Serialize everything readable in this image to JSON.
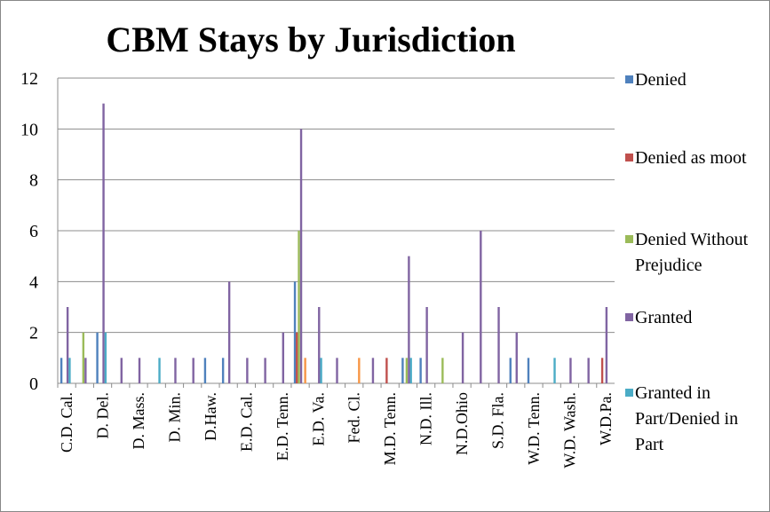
{
  "chart_data": {
    "type": "bar",
    "title": "CBM Stays by Jurisdiction",
    "categories": [
      "C.D. Cal.",
      null,
      "D. Del.",
      null,
      "D. Mass.",
      null,
      "D. Min.",
      null,
      "D.Haw.",
      null,
      "E.D. Cal.",
      null,
      "E.D. Tenn.",
      null,
      "E.D. Va.",
      null,
      "Fed. Cl.",
      null,
      "M.D. Tenn.",
      null,
      "N.D. Ill.",
      null,
      "N.D.Ohio",
      null,
      "S.D. Fla.",
      null,
      "W.D. Tenn.",
      null,
      "W.D. Wash.",
      null,
      "W.D.Pa."
    ],
    "series": [
      {
        "name": "Denied",
        "color": "#4f81bd",
        "values": [
          1,
          0,
          2,
          0,
          0,
          0,
          0,
          0,
          1,
          1,
          0,
          0,
          0,
          4,
          0,
          0,
          0,
          0,
          0,
          1,
          1,
          0,
          0,
          0,
          0,
          1,
          1,
          0,
          0,
          0,
          0
        ]
      },
      {
        "name": "Denied as moot",
        "color": "#c0504d",
        "values": [
          0,
          0,
          0,
          0,
          0,
          0,
          0,
          0,
          0,
          0,
          0,
          0,
          0,
          2,
          0,
          0,
          0,
          0,
          1,
          0,
          0,
          0,
          0,
          0,
          0,
          0,
          0,
          0,
          0,
          0,
          1
        ]
      },
      {
        "name": "Denied Without Prejudice",
        "color": "#9bbb59",
        "values": [
          0,
          2,
          0,
          0,
          0,
          0,
          0,
          0,
          0,
          0,
          0,
          0,
          0,
          6,
          0,
          0,
          0,
          0,
          0,
          1,
          0,
          1,
          0,
          0,
          0,
          0,
          0,
          0,
          0,
          0,
          0
        ]
      },
      {
        "name": "Granted",
        "color": "#8064a2",
        "values": [
          3,
          1,
          11,
          1,
          1,
          0,
          1,
          1,
          0,
          4,
          1,
          1,
          2,
          10,
          3,
          1,
          0,
          1,
          0,
          5,
          3,
          0,
          2,
          6,
          3,
          2,
          0,
          0,
          1,
          1,
          3
        ]
      },
      {
        "name": "Granted in Part/Denied in Part",
        "color": "#4bacc6",
        "values": [
          1,
          0,
          2,
          0,
          0,
          1,
          0,
          0,
          0,
          0,
          0,
          0,
          0,
          0,
          1,
          0,
          0,
          0,
          0,
          1,
          0,
          0,
          0,
          0,
          0,
          0,
          0,
          1,
          0,
          0,
          0
        ]
      },
      {
        "color": "#f79646",
        "values": [
          0,
          0,
          0,
          0,
          0,
          0,
          0,
          0,
          0,
          0,
          0,
          0,
          0,
          1,
          0,
          0,
          1,
          0,
          0,
          0,
          0,
          0,
          0,
          0,
          0,
          0,
          0,
          0,
          0,
          0,
          0
        ]
      }
    ],
    "ylim": [
      0,
      12
    ],
    "yticks": [
      0,
      2,
      4,
      6,
      8,
      10,
      12
    ],
    "grid": true,
    "legend": "right"
  }
}
